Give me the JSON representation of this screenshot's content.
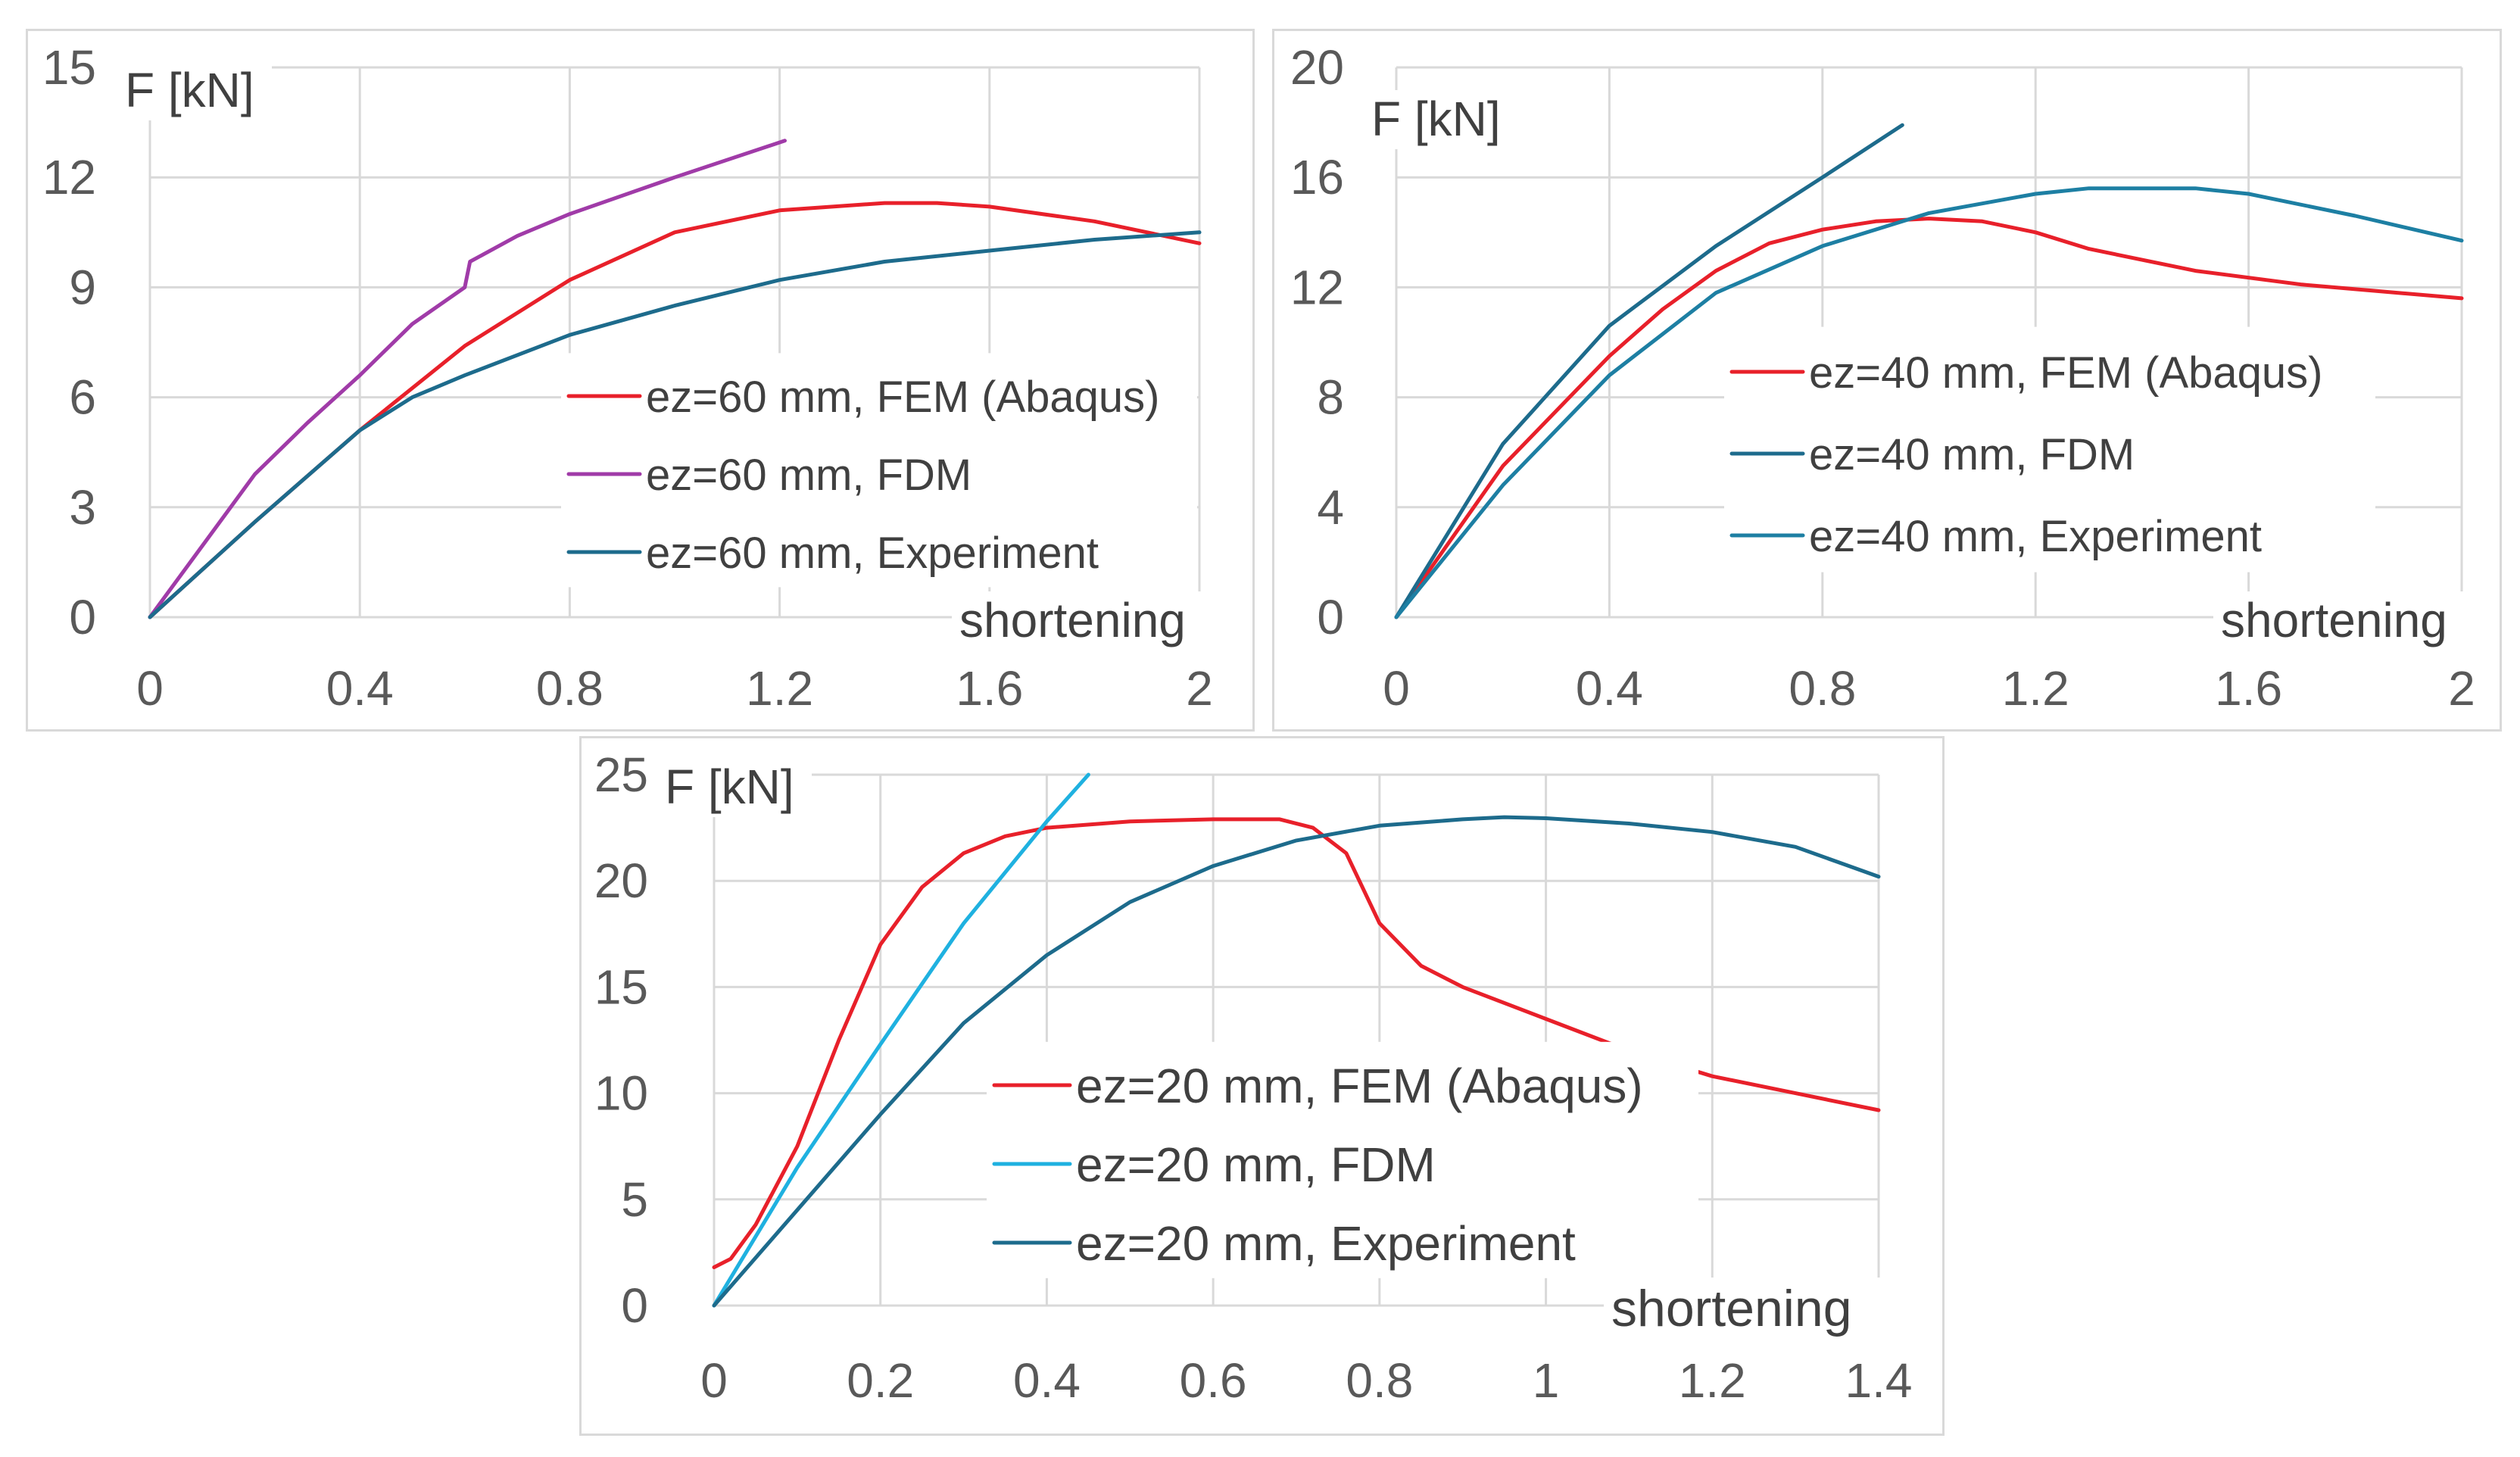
{
  "chart_data": [
    {
      "type": "line",
      "ylabel": "F [kN]",
      "xlabel": "shortening",
      "xlim": [
        0,
        2
      ],
      "ylim": [
        0,
        15
      ],
      "xticks": [
        "0",
        "0.4",
        "0.8",
        "1.2",
        "1.6",
        "2"
      ],
      "yticks": [
        "0",
        "3",
        "6",
        "9",
        "12",
        "15"
      ],
      "grid": true,
      "legend_position": "right",
      "series": [
        {
          "name": "ez=60 mm, FEM (Abaqus)",
          "color": "#e8202a",
          "points": [
            [
              0,
              0
            ],
            [
              0.2,
              2.6
            ],
            [
              0.4,
              5.1
            ],
            [
              0.6,
              7.4
            ],
            [
              0.8,
              9.2
            ],
            [
              1.0,
              10.5
            ],
            [
              1.2,
              11.1
            ],
            [
              1.4,
              11.3
            ],
            [
              1.5,
              11.3
            ],
            [
              1.6,
              11.2
            ],
            [
              1.8,
              10.8
            ],
            [
              2.0,
              10.2
            ]
          ]
        },
        {
          "name": "ez=60 mm, FDM",
          "color": "#a03ba8",
          "points": [
            [
              0,
              0
            ],
            [
              0.2,
              3.9
            ],
            [
              0.3,
              5.3
            ],
            [
              0.4,
              6.6
            ],
            [
              0.5,
              8.0
            ],
            [
              0.6,
              9.0
            ],
            [
              0.61,
              9.7
            ],
            [
              0.7,
              10.4
            ],
            [
              0.8,
              11.0
            ],
            [
              1.0,
              12.0
            ],
            [
              1.21,
              13.0
            ]
          ]
        },
        {
          "name": "ez=60 mm, Experiment",
          "color": "#1d6b8c",
          "points": [
            [
              0,
              0
            ],
            [
              0.2,
              2.6
            ],
            [
              0.4,
              5.1
            ],
            [
              0.5,
              6.0
            ],
            [
              0.6,
              6.6
            ],
            [
              0.8,
              7.7
            ],
            [
              1.0,
              8.5
            ],
            [
              1.2,
              9.2
            ],
            [
              1.4,
              9.7
            ],
            [
              1.6,
              10.0
            ],
            [
              1.8,
              10.3
            ],
            [
              2.0,
              10.5
            ]
          ]
        }
      ]
    },
    {
      "type": "line",
      "ylabel": "F [kN]",
      "xlabel": "shortening",
      "xlim": [
        0,
        2
      ],
      "ylim": [
        0,
        20
      ],
      "xticks": [
        "0",
        "0.4",
        "0.8",
        "1.2",
        "1.6",
        "2"
      ],
      "yticks": [
        "0",
        "4",
        "8",
        "12",
        "16",
        "20"
      ],
      "grid": true,
      "legend_position": "right",
      "series": [
        {
          "name": "ez=40 mm, FEM (Abaqus)",
          "color": "#e8202a",
          "points": [
            [
              0,
              0
            ],
            [
              0.2,
              5.5
            ],
            [
              0.4,
              9.5
            ],
            [
              0.5,
              11.2
            ],
            [
              0.6,
              12.6
            ],
            [
              0.7,
              13.6
            ],
            [
              0.8,
              14.1
            ],
            [
              0.9,
              14.4
            ],
            [
              1.0,
              14.5
            ],
            [
              1.1,
              14.4
            ],
            [
              1.2,
              14.0
            ],
            [
              1.3,
              13.4
            ],
            [
              1.5,
              12.6
            ],
            [
              1.7,
              12.1
            ],
            [
              2.0,
              11.6
            ]
          ]
        },
        {
          "name": "ez=40 mm, FDM",
          "color": "#1d6b8c",
          "points": [
            [
              0,
              0
            ],
            [
              0.2,
              6.3
            ],
            [
              0.4,
              10.6
            ],
            [
              0.6,
              13.5
            ],
            [
              0.8,
              16.0
            ],
            [
              0.95,
              17.9
            ]
          ]
        },
        {
          "name": "ez=40 mm, Experiment",
          "color": "#1d7fa3",
          "points": [
            [
              0,
              0
            ],
            [
              0.2,
              4.8
            ],
            [
              0.4,
              8.8
            ],
            [
              0.5,
              10.3
            ],
            [
              0.6,
              11.8
            ],
            [
              0.8,
              13.5
            ],
            [
              1.0,
              14.7
            ],
            [
              1.2,
              15.4
            ],
            [
              1.3,
              15.6
            ],
            [
              1.5,
              15.6
            ],
            [
              1.6,
              15.4
            ],
            [
              1.8,
              14.6
            ],
            [
              2.0,
              13.7
            ]
          ]
        }
      ]
    },
    {
      "type": "line",
      "ylabel": "F [kN]",
      "xlabel": "shortening",
      "xlim": [
        0,
        1.4
      ],
      "ylim": [
        0,
        25
      ],
      "xticks": [
        "0",
        "0.2",
        "0.4",
        "0.6",
        "0.8",
        "1",
        "1.2",
        "1.4"
      ],
      "yticks": [
        "0",
        "5",
        "10",
        "15",
        "20",
        "25"
      ],
      "grid": true,
      "legend_position": "center",
      "series": [
        {
          "name": "ez=20 mm, FEM (Abaqus)",
          "color": "#e8202a",
          "points": [
            [
              0,
              1.8
            ],
            [
              0.02,
              2.2
            ],
            [
              0.05,
              3.8
            ],
            [
              0.1,
              7.5
            ],
            [
              0.15,
              12.5
            ],
            [
              0.2,
              17.0
            ],
            [
              0.25,
              19.7
            ],
            [
              0.3,
              21.3
            ],
            [
              0.35,
              22.1
            ],
            [
              0.4,
              22.5
            ],
            [
              0.5,
              22.8
            ],
            [
              0.6,
              22.9
            ],
            [
              0.68,
              22.9
            ],
            [
              0.72,
              22.5
            ],
            [
              0.76,
              21.3
            ],
            [
              0.8,
              18.0
            ],
            [
              0.85,
              16.0
            ],
            [
              0.9,
              15.0
            ],
            [
              1.0,
              13.5
            ],
            [
              1.1,
              12.0
            ],
            [
              1.2,
              10.8
            ],
            [
              1.3,
              10.0
            ],
            [
              1.4,
              9.2
            ]
          ]
        },
        {
          "name": "ez=20 mm, FDM",
          "color": "#1fb1e0",
          "points": [
            [
              0,
              0
            ],
            [
              0.1,
              6.5
            ],
            [
              0.2,
              12.3
            ],
            [
              0.3,
              18.0
            ],
            [
              0.4,
              22.8
            ],
            [
              0.45,
              25.0
            ]
          ]
        },
        {
          "name": "ez=20 mm, Experiment",
          "color": "#1d6b8c",
          "points": [
            [
              0,
              0
            ],
            [
              0.1,
              4.5
            ],
            [
              0.2,
              9.0
            ],
            [
              0.3,
              13.3
            ],
            [
              0.4,
              16.5
            ],
            [
              0.5,
              19.0
            ],
            [
              0.6,
              20.7
            ],
            [
              0.7,
              21.9
            ],
            [
              0.8,
              22.6
            ],
            [
              0.9,
              22.9
            ],
            [
              0.95,
              23.0
            ],
            [
              1.0,
              22.95
            ],
            [
              1.1,
              22.7
            ],
            [
              1.2,
              22.3
            ],
            [
              1.3,
              21.6
            ],
            [
              1.4,
              20.2
            ]
          ]
        }
      ]
    }
  ]
}
